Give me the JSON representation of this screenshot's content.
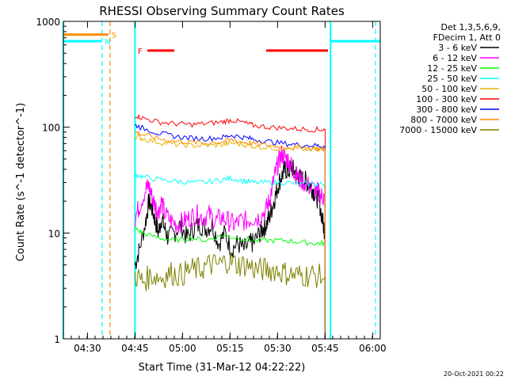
{
  "chart_data": {
    "type": "line",
    "title": "RHESSI Observing Summary Count Rates",
    "xlabel": "Start Time (31-Mar-12 04:22:22)",
    "ylabel": "Count Rate (s^-1 detector^-1)",
    "yscale": "log",
    "ylim": [
      1,
      1000
    ],
    "xlim_minutes": [
      0,
      100
    ],
    "x_ticks": [
      {
        "t": 7.6,
        "label": "04:30"
      },
      {
        "t": 22.6,
        "label": "04:45"
      },
      {
        "t": 37.6,
        "label": "05:00"
      },
      {
        "t": 52.6,
        "label": "05:15"
      },
      {
        "t": 67.6,
        "label": "05:30"
      },
      {
        "t": 82.6,
        "label": "05:45"
      },
      {
        "t": 97.6,
        "label": "06:00"
      }
    ],
    "y_ticks": [
      {
        "v": 1,
        "label": "1"
      },
      {
        "v": 10,
        "label": "10"
      },
      {
        "v": 100,
        "label": "100"
      },
      {
        "v": 1000,
        "label": "1000"
      }
    ],
    "legend_header": [
      "Det 1,3,5,6,9,",
      "FDecim 1, Att 0"
    ],
    "series": [
      {
        "name": "3 - 6 keV",
        "color": "#000000",
        "x": [
          22.6,
          24,
          26,
          27,
          28,
          29,
          30,
          31,
          32,
          33,
          35,
          37,
          39,
          41,
          43,
          45,
          47,
          49,
          51,
          53,
          55,
          57,
          59,
          60,
          62,
          63,
          64,
          65,
          66,
          67,
          68,
          69,
          70,
          71,
          72,
          73,
          74,
          75,
          76,
          77,
          78,
          79,
          80,
          81,
          82,
          82.6
        ],
        "y": [
          5,
          7,
          13,
          20,
          17,
          13,
          10,
          14,
          11,
          9,
          10,
          12,
          9,
          11,
          12,
          11,
          12,
          8,
          10,
          7,
          8,
          7,
          8,
          8,
          10,
          11,
          12,
          14,
          18,
          23,
          30,
          35,
          40,
          38,
          42,
          38,
          35,
          32,
          32,
          30,
          28,
          25,
          22,
          18,
          12,
          10
        ]
      },
      {
        "name": "6 - 12 keV",
        "color": "#ff00ff",
        "x": [
          22.6,
          24,
          26,
          27,
          28,
          29,
          30,
          31,
          32,
          34,
          36,
          38,
          40,
          42,
          44,
          46,
          48,
          50,
          52,
          54,
          56,
          58,
          60,
          62,
          64,
          65,
          66,
          67,
          68,
          69,
          70,
          71,
          72,
          73,
          74,
          76,
          78,
          80,
          81,
          82,
          82.6
        ],
        "y": [
          14,
          18,
          26,
          28,
          22,
          18,
          16,
          20,
          15,
          13,
          12,
          13,
          14,
          15,
          14,
          15,
          13,
          14,
          13,
          12,
          13,
          13,
          14,
          14,
          17,
          20,
          28,
          38,
          48,
          55,
          52,
          48,
          43,
          38,
          33,
          30,
          27,
          25,
          23,
          22,
          20
        ]
      },
      {
        "name": "12 - 25 keV",
        "color": "#00ff00",
        "x": [
          22.6,
          25,
          30,
          35,
          40,
          45,
          50,
          55,
          60,
          65,
          70,
          75,
          80,
          82.6
        ],
        "y": [
          11,
          10,
          9,
          8.5,
          9,
          8.5,
          9.5,
          9,
          8.5,
          8.5,
          8.5,
          8.2,
          8,
          8
        ]
      },
      {
        "name": "25 - 50 keV",
        "color": "#00ffff",
        "x": [
          22.6,
          25,
          30,
          35,
          40,
          45,
          50,
          53,
          57,
          60,
          65,
          70,
          75,
          80,
          82.6
        ],
        "y": [
          36,
          34,
          32,
          31,
          30,
          30,
          32,
          33,
          31,
          30,
          30,
          30,
          29,
          29,
          29
        ]
      },
      {
        "name": "50 - 100 keV",
        "color": "#e6b400",
        "x": [
          22.6,
          25,
          30,
          35,
          40,
          45,
          50,
          53,
          57,
          60,
          65,
          70,
          75,
          80,
          82.6
        ],
        "y": [
          82,
          78,
          72,
          69,
          67,
          67,
          68,
          71,
          68,
          66,
          64,
          63,
          62,
          61,
          60
        ]
      },
      {
        "name": "100 - 300 keV",
        "color": "#ff0000",
        "x": [
          22.6,
          25,
          30,
          35,
          40,
          45,
          50,
          53,
          57,
          60,
          65,
          70,
          75,
          80,
          82.6
        ],
        "y": [
          130,
          122,
          112,
          108,
          106,
          108,
          112,
          117,
          110,
          104,
          100,
          98,
          96,
          95,
          95
        ]
      },
      {
        "name": "300 - 800 keV",
        "color": "#0000ff",
        "x": [
          22.6,
          25,
          30,
          35,
          40,
          45,
          50,
          53,
          57,
          60,
          65,
          70,
          75,
          80,
          82.6
        ],
        "y": [
          105,
          98,
          88,
          82,
          79,
          78,
          80,
          84,
          80,
          77,
          73,
          70,
          68,
          67,
          66
        ]
      },
      {
        "name": "800 - 7000 keV",
        "color": "#ff8c00",
        "x": [
          22.6,
          25,
          30,
          35,
          40,
          45,
          50,
          53,
          57,
          60,
          65,
          70,
          75,
          80,
          82.6
        ],
        "y": [
          90,
          85,
          78,
          74,
          72,
          71,
          73,
          76,
          72,
          70,
          67,
          65,
          64,
          63,
          62
        ]
      },
      {
        "name": "7000 - 15000 keV",
        "color": "#808000",
        "x": [
          22.6,
          25,
          28,
          31,
          34,
          37,
          40,
          43,
          46,
          49,
          52,
          55,
          58,
          61,
          64,
          67,
          70,
          73,
          76,
          79,
          82.6
        ],
        "y": [
          4,
          3.5,
          4,
          3.8,
          4.2,
          4,
          4.5,
          4.5,
          5,
          5,
          5.5,
          5,
          5,
          4.5,
          4.5,
          4.5,
          4.2,
          4,
          4,
          4,
          3.8
        ]
      }
    ],
    "flags": [
      {
        "label": "S",
        "color": "#ff8c00",
        "t_start": 0,
        "t_end": 14.2,
        "value": 750
      },
      {
        "label": "N",
        "color": "#00ffff",
        "t_start": 0,
        "t_end": 12,
        "value": 650
      },
      {
        "label": "N",
        "color": "#00ffff",
        "t_start": 84.5,
        "t_end": 100,
        "value": 650
      },
      {
        "label": "F",
        "color": "#ff0000",
        "t_start": 26.5,
        "t_end": 35,
        "value": 530
      },
      {
        "label": "F",
        "color": "#ff0000",
        "t_start": 64,
        "t_end": 83.5,
        "value": 530
      }
    ],
    "markers": [
      {
        "t": 12.2,
        "color": "#00ffff"
      },
      {
        "t": 14.7,
        "color": "#ff8c00"
      },
      {
        "t": 98.5,
        "color": "#00ffff"
      }
    ],
    "solid_markers": [
      {
        "t": 0,
        "color": "#00ffff"
      },
      {
        "t": 22.6,
        "color": "#00ffff"
      },
      {
        "t": 84.3,
        "color": "#00ffff"
      }
    ]
  },
  "footer_stamp": "20-Oct-2021 00:22"
}
